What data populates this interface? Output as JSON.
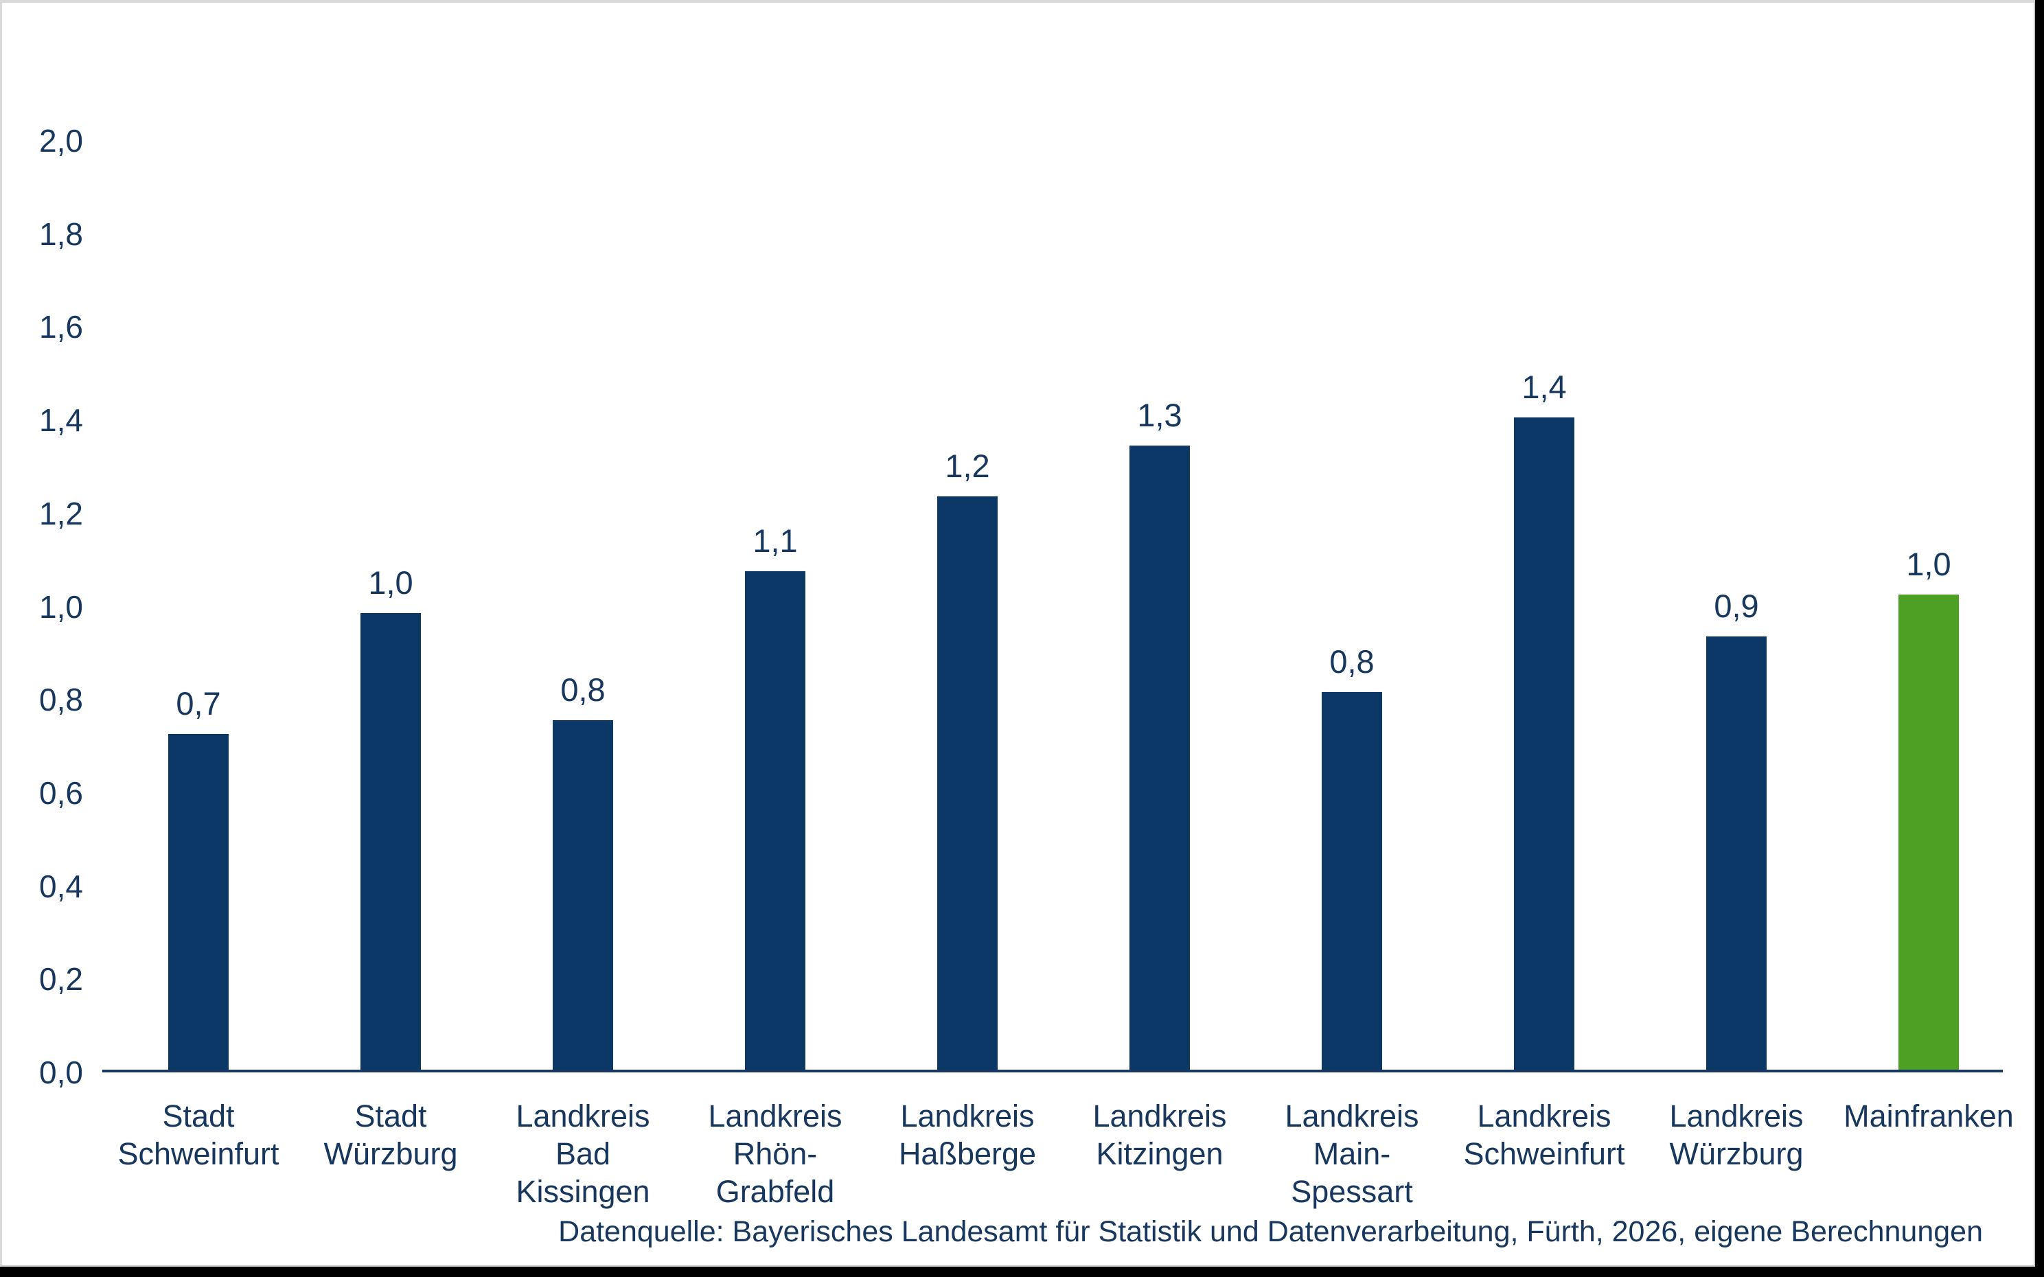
{
  "colors": {
    "background": "#FFFFFF",
    "outer_band": "#000000",
    "frame_gray": "#D9D9D9",
    "hairline_gray": "#C9C9C9",
    "bar_navy": "#0B3866",
    "bar_green": "#4EA024",
    "text_navy": "#17375E",
    "axis_navy": "#17375E"
  },
  "chart_data": {
    "type": "bar",
    "title": "",
    "xlabel": "",
    "ylabel": "",
    "categories": [
      "Stadt Schweinfurt",
      "Stadt Würzburg",
      "Landkreis Bad Kissingen",
      "Landkreis Rhön-Grabfeld",
      "Landkreis Haßberge",
      "Landkreis Kitzingen",
      "Landkreis Main-Spessart",
      "Landkreis Schweinfurt",
      "Landkreis Würzburg",
      "Mainfranken"
    ],
    "categories_lines": [
      [
        "Stadt",
        "Schweinfurt"
      ],
      [
        "Stadt",
        "Würzburg"
      ],
      [
        "Landkreis Bad",
        "Kissingen"
      ],
      [
        "Landkreis",
        "Rhön-Grabfeld"
      ],
      [
        "Landkreis",
        "Haßberge"
      ],
      [
        "Landkreis",
        "Kitzingen"
      ],
      [
        "Landkreis",
        "Main-Spessart"
      ],
      [
        "Landkreis",
        "Schweinfurt"
      ],
      [
        "Landkreis",
        "Würzburg"
      ],
      [
        "Mainfranken"
      ]
    ],
    "values": [
      0.7,
      1.0,
      0.8,
      1.1,
      1.2,
      1.3,
      0.8,
      1.4,
      0.9,
      1.0
    ],
    "value_labels": [
      "0,7",
      "1,0",
      "0,8",
      "1,1",
      "1,2",
      "1,3",
      "0,8",
      "1,4",
      "0,9",
      "1,0"
    ],
    "values_precise_estimate": [
      0.72,
      0.98,
      0.75,
      1.07,
      1.23,
      1.34,
      0.81,
      1.4,
      0.93,
      1.02
    ],
    "highlight_index": 9,
    "ylim": [
      0,
      2.0
    ],
    "ytick_step": 0.2,
    "yticks": [
      {
        "value": 0.0,
        "label": "0,0"
      },
      {
        "value": 0.2,
        "label": "0,2"
      },
      {
        "value": 0.4,
        "label": "0,4"
      },
      {
        "value": 0.6,
        "label": "0,6"
      },
      {
        "value": 0.8,
        "label": "0,8"
      },
      {
        "value": 1.0,
        "label": "1,0"
      },
      {
        "value": 1.2,
        "label": "1,2"
      },
      {
        "value": 1.4,
        "label": "1,4"
      },
      {
        "value": 1.6,
        "label": "1,6"
      },
      {
        "value": 1.8,
        "label": "1,8"
      },
      {
        "value": 2.0,
        "label": "2,0"
      }
    ],
    "grid": false,
    "legend": false,
    "source_note": "Datenquelle: Bayerisches Landesamt für Statistik und Datenverarbeitung, Fürth, 2026, eigene Berechnungen"
  }
}
